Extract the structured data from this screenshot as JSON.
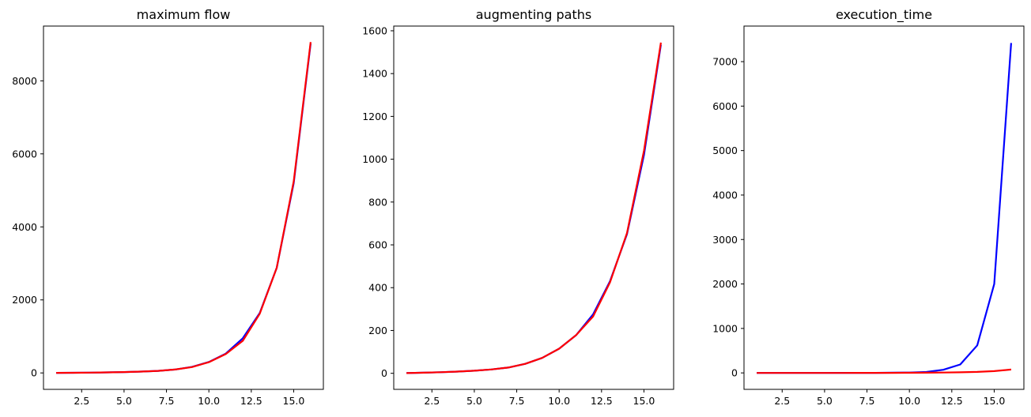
{
  "chart_data": [
    {
      "type": "line",
      "title": "maximum flow",
      "xlabel": "",
      "ylabel": "",
      "x": [
        1,
        2,
        3,
        4,
        5,
        6,
        7,
        8,
        9,
        10,
        11,
        12,
        13,
        14,
        15,
        16
      ],
      "xlim": [
        0.25,
        16.75
      ],
      "ylim": [
        -450,
        9500
      ],
      "xticks": [
        2.5,
        5.0,
        7.5,
        10.0,
        12.5,
        15.0
      ],
      "xtick_labels": [
        "2.5",
        "5.0",
        "7.5",
        "10.0",
        "12.5",
        "15.0"
      ],
      "yticks": [
        0,
        2000,
        4000,
        6000,
        8000
      ],
      "ytick_labels": [
        "0",
        "2000",
        "4000",
        "6000",
        "8000"
      ],
      "series": [
        {
          "color": "#0000ff",
          "values": [
            2,
            4,
            8,
            14,
            24,
            36,
            56,
            92,
            165,
            300,
            530,
            950,
            1640,
            2880,
            5200,
            9020
          ]
        },
        {
          "color": "#ff0000",
          "values": [
            2,
            4,
            8,
            14,
            24,
            36,
            56,
            92,
            160,
            295,
            520,
            880,
            1620,
            2880,
            5250,
            9060
          ]
        }
      ]
    },
    {
      "type": "line",
      "title": "augmenting paths",
      "xlabel": "",
      "ylabel": "",
      "x": [
        1,
        2,
        3,
        4,
        5,
        6,
        7,
        8,
        9,
        10,
        11,
        12,
        13,
        14,
        15,
        16
      ],
      "xlim": [
        0.25,
        16.75
      ],
      "ylim": [
        -75,
        1622
      ],
      "xticks": [
        2.5,
        5.0,
        7.5,
        10.0,
        12.5,
        15.0
      ],
      "xtick_labels": [
        "2.5",
        "5.0",
        "7.5",
        "10.0",
        "12.5",
        "15.0"
      ],
      "yticks": [
        0,
        200,
        400,
        600,
        800,
        1000,
        1200,
        1400,
        1600
      ],
      "ytick_labels": [
        "0",
        "200",
        "400",
        "600",
        "800",
        "1000",
        "1200",
        "1400",
        "1600"
      ],
      "series": [
        {
          "color": "#0000ff",
          "values": [
            1,
            3,
            5,
            8,
            12,
            18,
            27,
            44,
            72,
            115,
            178,
            275,
            430,
            650,
            1020,
            1535
          ]
        },
        {
          "color": "#ff0000",
          "values": [
            1,
            3,
            5,
            8,
            12,
            18,
            27,
            44,
            72,
            115,
            178,
            265,
            425,
            655,
            1040,
            1545
          ]
        }
      ]
    },
    {
      "type": "line",
      "title": "execution_time",
      "xlabel": "",
      "ylabel": "",
      "x": [
        1,
        2,
        3,
        4,
        5,
        6,
        7,
        8,
        9,
        10,
        11,
        12,
        13,
        14,
        15,
        16
      ],
      "xlim": [
        0.25,
        16.75
      ],
      "ylim": [
        -370,
        7800
      ],
      "xticks": [
        2.5,
        5.0,
        7.5,
        10.0,
        12.5,
        15.0
      ],
      "xtick_labels": [
        "2.5",
        "5.0",
        "7.5",
        "10.0",
        "12.5",
        "15.0"
      ],
      "yticks": [
        0,
        1000,
        2000,
        3000,
        4000,
        5000,
        6000,
        7000
      ],
      "ytick_labels": [
        "0",
        "1000",
        "2000",
        "3000",
        "4000",
        "5000",
        "6000",
        "7000"
      ],
      "series": [
        {
          "color": "#0000ff",
          "values": [
            0,
            0,
            0,
            0,
            0,
            1,
            1,
            2,
            4,
            8,
            20,
            70,
            190,
            620,
            2000,
            7420
          ]
        },
        {
          "color": "#ff0000",
          "values": [
            0,
            0,
            0,
            0,
            0,
            0,
            1,
            1,
            2,
            3,
            5,
            8,
            13,
            22,
            40,
            75
          ]
        }
      ]
    }
  ]
}
